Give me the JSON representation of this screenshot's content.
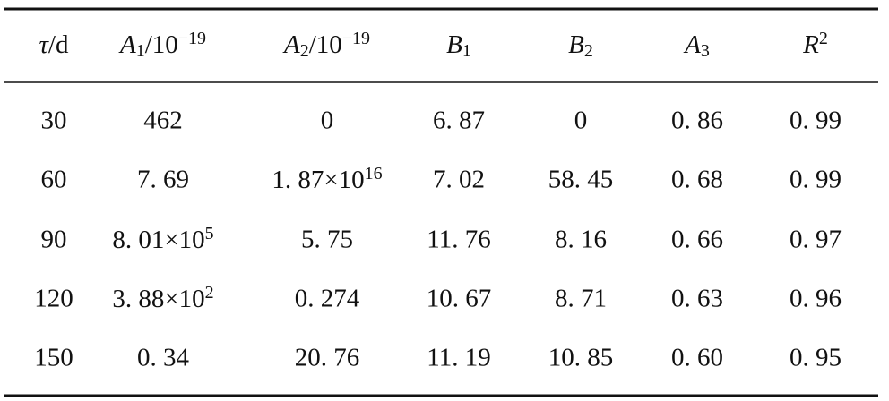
{
  "table": {
    "header": [
      [
        {
          "text": "τ",
          "italic": true
        },
        {
          "text": "/d"
        }
      ],
      [
        {
          "text": "A",
          "italic": true
        },
        {
          "text": "1",
          "sub": true
        },
        {
          "text": "/10"
        },
        {
          "text": "−19",
          "sup": true
        }
      ],
      [
        {
          "text": "A",
          "italic": true
        },
        {
          "text": "2",
          "sub": true
        },
        {
          "text": "/10"
        },
        {
          "text": "−19",
          "sup": true
        }
      ],
      [
        {
          "text": "B",
          "italic": true
        },
        {
          "text": "1",
          "sub": true
        }
      ],
      [
        {
          "text": "B",
          "italic": true
        },
        {
          "text": "2",
          "sub": true
        }
      ],
      [
        {
          "text": "A",
          "italic": true
        },
        {
          "text": "3",
          "sub": true
        }
      ],
      [
        {
          "text": "R",
          "italic": true
        },
        {
          "text": "2",
          "sup": true
        }
      ]
    ],
    "rows": [
      [
        "30",
        "462",
        "0",
        "6. 87",
        "0",
        "0. 86",
        "0. 99"
      ],
      [
        "60",
        "7. 69",
        [
          {
            "text": "1. 87×10"
          },
          {
            "text": "16",
            "sup": true
          }
        ],
        "7. 02",
        "58. 45",
        "0. 68",
        "0. 99"
      ],
      [
        "90",
        [
          {
            "text": "8. 01×10"
          },
          {
            "text": "5",
            "sup": true
          }
        ],
        "5. 75",
        "11. 76",
        "8. 16",
        "0. 66",
        "0. 97"
      ],
      [
        "120",
        [
          {
            "text": "3. 88×10"
          },
          {
            "text": "2",
            "sup": true
          }
        ],
        "0. 274",
        "10. 67",
        "8. 71",
        "0. 63",
        "0. 96"
      ],
      [
        "150",
        "0. 34",
        "20. 76",
        "11. 19",
        "10. 85",
        "0. 60",
        "0. 95"
      ]
    ]
  }
}
